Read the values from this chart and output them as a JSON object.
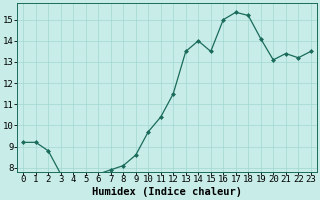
{
  "x": [
    0,
    1,
    2,
    3,
    4,
    5,
    6,
    7,
    8,
    9,
    10,
    11,
    12,
    13,
    14,
    15,
    16,
    17,
    18,
    19,
    20,
    21,
    22,
    23
  ],
  "y": [
    9.2,
    9.2,
    8.8,
    7.7,
    7.6,
    7.6,
    7.7,
    7.9,
    8.1,
    8.6,
    9.7,
    10.4,
    11.5,
    13.5,
    14.0,
    13.5,
    15.0,
    15.35,
    15.2,
    14.1,
    13.1,
    13.4,
    13.2,
    13.5
  ],
  "xlabel": "Humidex (Indice chaleur)",
  "ylim": [
    7.8,
    15.8
  ],
  "yticks": [
    8,
    9,
    10,
    11,
    12,
    13,
    14,
    15
  ],
  "bg_color": "#c8ede8",
  "line_color": "#1a6b5a",
  "marker_color": "#1a6b5a",
  "grid_color": "#a0d8d0",
  "xlabel_fontsize": 7.5,
  "tick_fontsize": 6.5
}
